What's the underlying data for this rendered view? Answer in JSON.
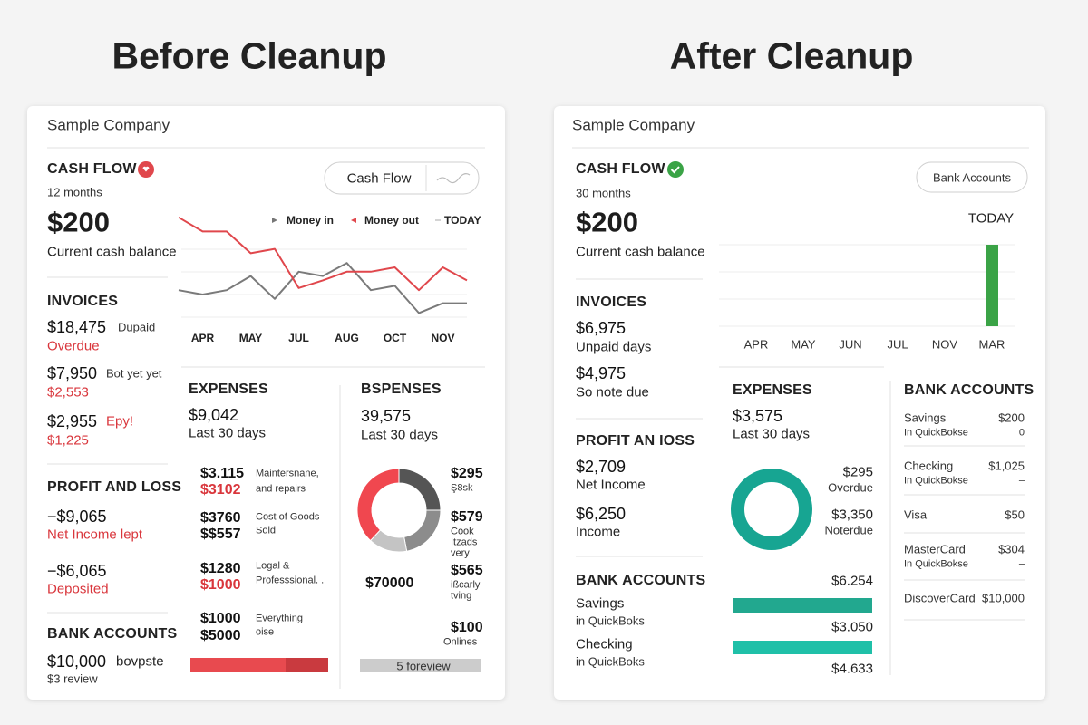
{
  "before": {
    "heading": "Before Cleanup",
    "company": "Sample Company",
    "cash_flow": {
      "title": "CASH FLOW",
      "period": "12 months",
      "balance": "$200",
      "caption": "Current cash balance",
      "toggle": "Cash Flow"
    },
    "chart": {
      "type": "line",
      "categories": [
        null,
        "APR",
        null,
        "MAY",
        null,
        "JUL",
        null,
        "AUG",
        null,
        "OCT",
        null,
        "NOV",
        null
      ],
      "ylim": [
        0,
        100
      ],
      "series": [
        {
          "name": "Money in",
          "color": "#7a7a7a",
          "values": [
            29,
            25,
            29,
            42,
            21,
            46,
            42,
            54,
            29,
            33,
            8,
            17,
            17
          ]
        },
        {
          "name": "Money out",
          "color": "#e0474c",
          "values": [
            96,
            83,
            83,
            63,
            67,
            31,
            38,
            46,
            46,
            50,
            29,
            50,
            38
          ]
        }
      ],
      "today_label": "TODAY"
    },
    "invoices": {
      "title": "INVOICES",
      "items": [
        {
          "amount": "$18,475",
          "note": "Dupaid",
          "sub": "Overdue"
        },
        {
          "amount": "$7,950",
          "note": "Bot yet yet",
          "sub": "$2,553"
        },
        {
          "amount": "$2,955",
          "note": "Epy!",
          "sub": "$1,225"
        }
      ]
    },
    "profit_loss": {
      "title": "PROFIT AND LOSS",
      "items": [
        {
          "amount": "−$9,065",
          "sub": "Net Income lept"
        },
        {
          "amount": "−$6,065",
          "sub": "Deposited"
        }
      ]
    },
    "bank": {
      "title": "BANK ACCOUNTS",
      "amount": "$10,000",
      "note": "bovpste",
      "sub": "$3 review"
    },
    "expenses": {
      "title": "EXPENSES",
      "total": "$9,042",
      "period": "Last 30 days",
      "rows": [
        {
          "amounts": [
            "$3.115",
            "$3102"
          ],
          "label": [
            "Maintersnane,",
            "and repairs"
          ]
        },
        {
          "amounts": [
            "$3760",
            "$$557"
          ],
          "label": [
            "Cost of Goods",
            "Sold"
          ]
        },
        {
          "amounts": [
            "$1280",
            "$1000"
          ],
          "label": [
            "Logal &",
            "Professsional. ."
          ]
        },
        {
          "amounts": [
            "$1000",
            "$5000"
          ],
          "label": [
            "Everything",
            "oise"
          ]
        }
      ]
    },
    "expenses2": {
      "title": "BSPENSES",
      "total": "39,575",
      "period": "Last 30 days",
      "donut": {
        "type": "pie",
        "values": [
          25,
          22,
          15,
          38
        ],
        "colors": [
          "#555555",
          "#8c8c8c",
          "#c4c4c4",
          "#f0474f"
        ]
      },
      "center_label": "$70000",
      "items": [
        {
          "amount": "$295",
          "lines": [
            "Ş8sk"
          ]
        },
        {
          "amount": "$579",
          "lines": [
            "Cook",
            "Itzads",
            "very"
          ]
        },
        {
          "amount": "$565",
          "lines": [
            "ißcarly",
            "tving"
          ]
        },
        {
          "amount": "$100",
          "lines": [
            "Onlines"
          ]
        }
      ],
      "bar_label": "5 foreview"
    }
  },
  "after": {
    "heading": "After Cleanup",
    "company": "Sample Company",
    "cash_flow": {
      "title": "CASH FLOW",
      "period": "30 months",
      "balance": "$200",
      "caption": "Current cash balance",
      "button": "Bank Accounts"
    },
    "chart": {
      "type": "bar",
      "categories": [
        "APR",
        "MAY",
        "JUN",
        "JUL",
        "NOV",
        "MAR"
      ],
      "values": [
        0,
        0,
        0,
        0,
        0,
        3
      ],
      "ylim": [
        0,
        3
      ],
      "color": "#3aa346",
      "today_label": "TODAY"
    },
    "invoices": {
      "title": "INVOICES",
      "items": [
        {
          "amount": "$6,975",
          "sub": "Unpaid days"
        },
        {
          "amount": "$4,975",
          "sub": "So note due"
        }
      ]
    },
    "profit_loss": {
      "title": "PROFIT AN IOSS",
      "items": [
        {
          "amount": "$2,709",
          "sub": "Net Income"
        },
        {
          "amount": "$6,250",
          "sub": "Income"
        }
      ]
    },
    "bank": {
      "title": "BANK ACCOUNTS",
      "accounts": [
        {
          "name": "Savings",
          "sub": "in QuickBoks"
        },
        {
          "name": "Checking",
          "sub": "in QuickBoks"
        }
      ]
    },
    "expenses": {
      "title": "EXPENSES",
      "total": "$3,575",
      "period": "Last 30 days",
      "items": [
        {
          "amount": "$295",
          "note": "Overdue"
        },
        {
          "amount": "$3,350",
          "note": "Noterdue"
        }
      ],
      "bar_amounts": [
        "$6.254",
        "$3.050",
        "$4.633"
      ]
    },
    "bank_list": {
      "title": "BANK ACCOUNTS",
      "accounts": [
        {
          "name": "Savings",
          "amount": "$200",
          "sub": "In QuickBokse",
          "sub_value": "0"
        },
        {
          "name": "Checking",
          "amount": "$1,025",
          "sub": "In QuickBokse",
          "sub_value": "–"
        },
        {
          "name": "Visa",
          "amount": "$50"
        },
        {
          "name": "MasterCard",
          "amount": "$304",
          "sub": "In QuickBokse",
          "sub_value": "–"
        },
        {
          "name": "DiscoverCard",
          "amount": "$10,000"
        }
      ]
    }
  }
}
